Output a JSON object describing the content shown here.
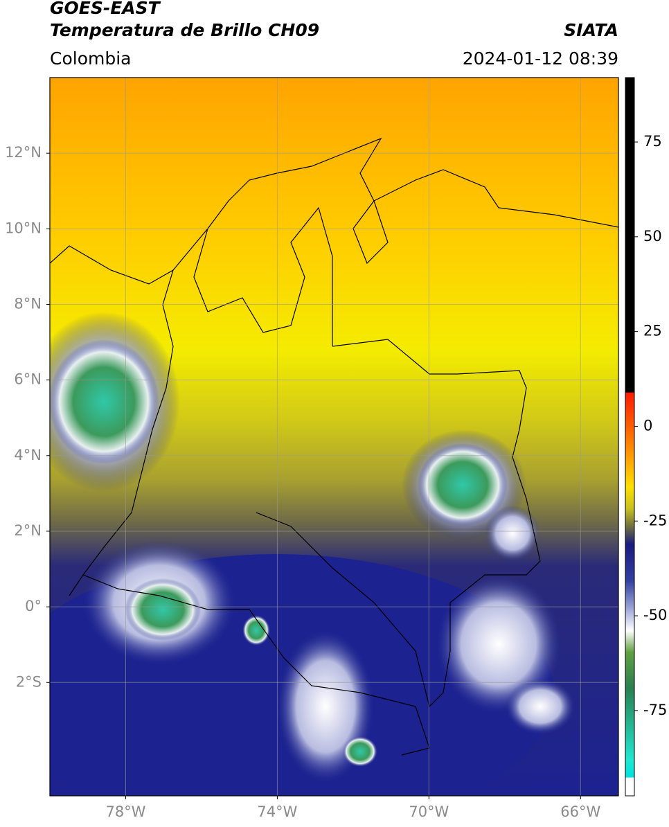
{
  "chart_data": {
    "type": "map",
    "title": "GOES-EAST",
    "subtitle": "Temperatura de Brillo CH09",
    "source": "SIATA",
    "region": "Colombia",
    "timestamp": "2024-01-12 08:39",
    "xlim": [
      -80,
      -65
    ],
    "ylim": [
      -5,
      14
    ],
    "xticks": [
      {
        "value": -78,
        "label": "78°W"
      },
      {
        "value": -74,
        "label": "74°W"
      },
      {
        "value": -70,
        "label": "70°W"
      },
      {
        "value": -66,
        "label": "66°W"
      }
    ],
    "yticks": [
      {
        "value": -2,
        "label": "2°S"
      },
      {
        "value": 0,
        "label": "0°"
      },
      {
        "value": 2,
        "label": "2°N"
      },
      {
        "value": 4,
        "label": "4°N"
      },
      {
        "value": 6,
        "label": "6°N"
      },
      {
        "value": 8,
        "label": "8°N"
      },
      {
        "value": 10,
        "label": "10°N"
      },
      {
        "value": 12,
        "label": "12°N"
      }
    ],
    "grid": true,
    "colorbar": {
      "lim": [
        -97.5,
        92
      ],
      "ticks": [
        -75,
        -50,
        -25,
        0,
        25,
        50,
        75
      ]
    }
  }
}
